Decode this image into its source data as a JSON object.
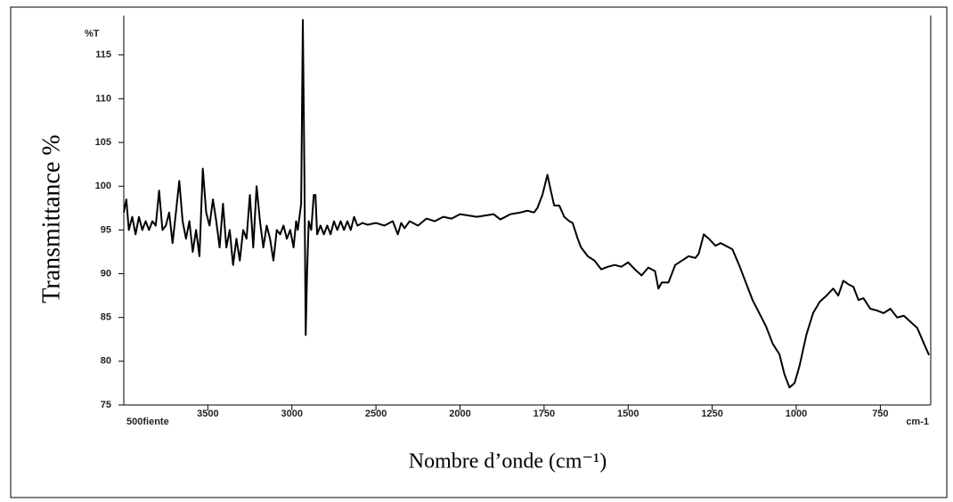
{
  "chart_data": {
    "type": "line",
    "ylabel": "Transmittance   %",
    "xlabel": "Nombre d’onde (cm⁻¹)",
    "y_unit_label": "%T",
    "sample_label": "500fiente",
    "x_unit_label": "cm-1",
    "color": "#000000",
    "xlim": [
      4000,
      600
    ],
    "xticks": [
      3500,
      3000,
      2500,
      2000,
      1750,
      1500,
      1250,
      1000,
      750
    ],
    "ylim": [
      75,
      119.5
    ],
    "yticks": [
      75,
      80,
      85,
      90,
      95,
      100,
      105,
      110,
      115
    ],
    "grid": false,
    "x": [
      4000,
      3985,
      3970,
      3950,
      3930,
      3910,
      3890,
      3870,
      3850,
      3830,
      3810,
      3790,
      3770,
      3750,
      3730,
      3710,
      3690,
      3670,
      3650,
      3630,
      3610,
      3590,
      3570,
      3550,
      3530,
      3510,
      3490,
      3470,
      3450,
      3430,
      3410,
      3390,
      3370,
      3350,
      3330,
      3310,
      3290,
      3270,
      3250,
      3230,
      3210,
      3190,
      3170,
      3150,
      3130,
      3110,
      3090,
      3070,
      3050,
      3030,
      3010,
      2990,
      2975,
      2965,
      2955,
      2945,
      2935,
      2925,
      2918,
      2910,
      2900,
      2885,
      2870,
      2860,
      2850,
      2830,
      2810,
      2790,
      2770,
      2750,
      2730,
      2710,
      2690,
      2670,
      2650,
      2630,
      2610,
      2580,
      2550,
      2500,
      2450,
      2400,
      2370,
      2350,
      2330,
      2300,
      2250,
      2200,
      2150,
      2100,
      2050,
      2000,
      1950,
      1900,
      1880,
      1850,
      1820,
      1800,
      1780,
      1770,
      1755,
      1740,
      1730,
      1720,
      1705,
      1690,
      1675,
      1665,
      1650,
      1640,
      1620,
      1600,
      1580,
      1560,
      1540,
      1520,
      1500,
      1480,
      1460,
      1440,
      1420,
      1410,
      1400,
      1380,
      1360,
      1340,
      1320,
      1300,
      1290,
      1275,
      1260,
      1240,
      1225,
      1210,
      1190,
      1170,
      1150,
      1130,
      1110,
      1090,
      1070,
      1050,
      1035,
      1020,
      1005,
      990,
      970,
      950,
      930,
      910,
      890,
      875,
      860,
      845,
      830,
      815,
      800,
      780,
      760,
      740,
      720,
      700,
      680,
      660,
      640,
      620,
      605
    ],
    "values": [
      97,
      98.5,
      95,
      96.5,
      94.5,
      96.5,
      95,
      96,
      95,
      96,
      95.5,
      99.5,
      95,
      95.5,
      97,
      93.5,
      97,
      100.6,
      96,
      94,
      96,
      92.5,
      95,
      92,
      102,
      97,
      95.5,
      98.5,
      96,
      93,
      98,
      93,
      95,
      91,
      94,
      91.5,
      95,
      94,
      99,
      93,
      100,
      96,
      93,
      95.5,
      94,
      91.5,
      95,
      94.5,
      95.5,
      94,
      95,
      93,
      96,
      95,
      96.5,
      98,
      119,
      100,
      83,
      90,
      96,
      95,
      99,
      99,
      94.5,
      95.5,
      94.5,
      95.5,
      94.5,
      96,
      95,
      96,
      95,
      96,
      95,
      96.5,
      95.5,
      95.8,
      95.6,
      95.8,
      95.5,
      96,
      94.5,
      95.8,
      95.2,
      96,
      95.5,
      96.3,
      96,
      96.5,
      96.3,
      96.8,
      96.5,
      96.8,
      96.2,
      96.8,
      97,
      97.2,
      97,
      97.5,
      99,
      101.3,
      99.5,
      97.8,
      97.8,
      96.5,
      96,
      95.8,
      94,
      93,
      92,
      91.5,
      90.5,
      90.8,
      91,
      90.8,
      91.3,
      90.5,
      89.8,
      90.7,
      90.3,
      88.3,
      89,
      89,
      91,
      91.5,
      92,
      91.8,
      92.3,
      94.5,
      94,
      93.2,
      93.5,
      93.2,
      92.8,
      91,
      89,
      87,
      85.5,
      84,
      82,
      80.8,
      78.5,
      77,
      77.5,
      79.5,
      83,
      85.5,
      86.8,
      87.5,
      88.3,
      87.5,
      89.2,
      88.8,
      88.5,
      87,
      87.2,
      86,
      85.8,
      85.5,
      86,
      85,
      85.2,
      84.5,
      83.8,
      82,
      80.7
    ]
  }
}
